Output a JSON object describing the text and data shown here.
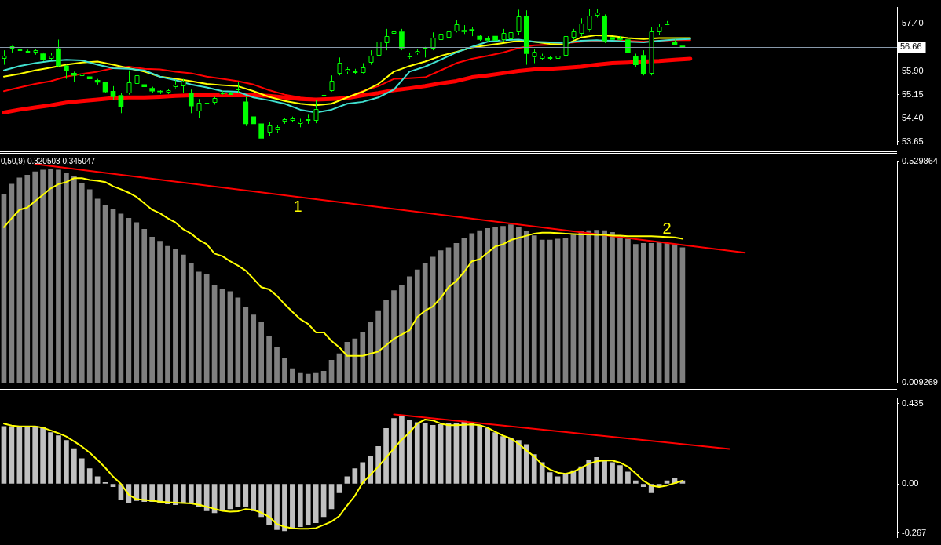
{
  "chart_data": [
    {
      "type": "candlestick",
      "tick_labels": "y",
      "color": "#00ff00",
      "colors": [
        "#000000",
        "#000000",
        "#000000",
        "#000000",
        "#000000",
        "#00ff00",
        "#000000",
        "#00ff00",
        "#00ff00",
        "#00ff00",
        "#000000",
        "#00ff00",
        "#00ff00",
        "#00ff00",
        "#00ff00",
        "#00ff00",
        "#000000",
        "#000000",
        "#00ff00",
        "#00ff00",
        "#00ff00",
        "#000000",
        "#000000",
        "#000000",
        "#00ff00",
        "#000000",
        "#000000",
        "#000000",
        "#000000",
        "#000000",
        "#000000",
        "#00ff00",
        "#00ff00",
        "#00ff00",
        "#000000",
        "#000000",
        "#000000",
        "#000000",
        "#000000",
        "#000000",
        "#000000",
        "#000000",
        "#000000",
        "#000000",
        "#000000",
        "#000000",
        "#000000",
        "#000000",
        "#000000",
        "#000000",
        "#000000",
        "#00ff00",
        "#000000",
        "#000000",
        "#000000",
        "#000000",
        "#000000",
        "#000000",
        "#000000",
        "#00ff00",
        "#00ff00",
        "#00ff00",
        "#00ff00",
        "#00ff00",
        "#000000",
        "#000000",
        "#000000",
        "#00ff00",
        "#000000",
        "#000000",
        "#000000",
        "#000000",
        "#000000",
        "#000000",
        "#000000",
        "#000000",
        "#000000",
        "#00ff00",
        "#00ff00",
        "#00ff00",
        "#00ff00",
        "#00ff00",
        "#00ff00",
        "#000000",
        "#000000",
        "#000000",
        "#00ff00",
        "#00ff00",
        null,
        null,
        null,
        null,
        null,
        null,
        null,
        null,
        null,
        null,
        null,
        null,
        null,
        null,
        null,
        null,
        null,
        null,
        null,
        null,
        null,
        null,
        null,
        null,
        null,
        null,
        null
      ],
      "categories": [
        null,
        null,
        null,
        null,
        null,
        null,
        null,
        null,
        null,
        null,
        null,
        null,
        null,
        null,
        null,
        null,
        null,
        null,
        null,
        null,
        null,
        null,
        null,
        null,
        null,
        null,
        null,
        null,
        null,
        null,
        null,
        null,
        null,
        null,
        null,
        null,
        null,
        null,
        null,
        null,
        null,
        null,
        null,
        null,
        null,
        null,
        null,
        null,
        null,
        null,
        null,
        null,
        null,
        null,
        null,
        null,
        null,
        null,
        null,
        null,
        null,
        null,
        null,
        null,
        null,
        null,
        null,
        null,
        null,
        null,
        null,
        null,
        null,
        null,
        null,
        null,
        null,
        null,
        null,
        null,
        null,
        null,
        null,
        null,
        null,
        null,
        null,
        null,
        null,
        null,
        null,
        null,
        null,
        null,
        null,
        null,
        null,
        null,
        null,
        null,
        null,
        null,
        null,
        null,
        null,
        null,
        null,
        null,
        null,
        null,
        null,
        null,
        null,
        null,
        null
      ],
      "ohlc": [
        [
          56.29,
          56.56,
          56.1,
          56.38
        ],
        [
          56.61,
          56.74,
          56.49,
          56.7
        ],
        [
          56.56,
          56.61,
          56.51,
          56.58
        ],
        [
          56.51,
          56.58,
          56.47,
          56.54
        ],
        [
          56.49,
          56.61,
          56.42,
          56.56
        ],
        [
          56.45,
          56.49,
          56.22,
          56.26
        ],
        [
          56.29,
          56.47,
          56.26,
          56.4
        ],
        [
          56.61,
          56.9,
          56.04,
          56.06
        ],
        [
          56.06,
          56.1,
          55.65,
          55.92
        ],
        [
          55.83,
          55.88,
          55.54,
          55.76
        ],
        [
          55.74,
          55.86,
          55.67,
          55.81
        ],
        [
          55.72,
          55.74,
          55.58,
          55.65
        ],
        [
          55.61,
          55.65,
          55.47,
          55.54
        ],
        [
          55.54,
          55.56,
          55.2,
          55.24
        ],
        [
          55.26,
          55.42,
          54.97,
          55.08
        ],
        [
          55.13,
          55.2,
          54.56,
          54.76
        ],
        [
          55.2,
          55.92,
          55.15,
          55.54
        ],
        [
          55.49,
          55.88,
          55.42,
          55.76
        ],
        [
          55.47,
          55.65,
          55.31,
          55.4
        ],
        [
          55.35,
          55.4,
          55.2,
          55.26
        ],
        [
          55.26,
          55.29,
          55.17,
          55.24
        ],
        [
          55.22,
          55.33,
          55.17,
          55.29
        ],
        [
          55.38,
          55.61,
          55.35,
          55.47
        ],
        [
          55.42,
          55.65,
          55.2,
          55.56
        ],
        [
          55.2,
          55.31,
          54.56,
          54.79
        ],
        [
          54.63,
          55.01,
          54.4,
          54.9
        ],
        [
          54.83,
          55.01,
          54.74,
          54.88
        ],
        [
          54.9,
          55.08,
          54.83,
          55.04
        ],
        [
          55.17,
          55.26,
          55.15,
          55.22
        ],
        [
          55.17,
          55.24,
          55.15,
          55.2
        ],
        [
          55.31,
          55.56,
          55.2,
          55.33
        ],
        [
          54.92,
          55.08,
          54.15,
          54.22
        ],
        [
          54.45,
          54.56,
          54.06,
          54.22
        ],
        [
          54.22,
          54.29,
          53.65,
          53.76
        ],
        [
          53.95,
          54.29,
          53.83,
          54.17
        ],
        [
          54.01,
          54.17,
          53.92,
          54.11
        ],
        [
          54.29,
          54.4,
          54.22,
          54.36
        ],
        [
          54.33,
          54.45,
          54.29,
          54.4
        ],
        [
          54.22,
          54.38,
          54.11,
          54.29
        ],
        [
          54.33,
          54.51,
          54.22,
          54.38
        ],
        [
          54.33,
          54.97,
          54.24,
          54.7
        ],
        [
          55.08,
          55.31,
          55.04,
          55.15
        ],
        [
          55.26,
          55.76,
          55.24,
          55.58
        ],
        [
          55.81,
          56.33,
          55.76,
          56.17
        ],
        [
          55.88,
          56.04,
          55.81,
          55.97
        ],
        [
          55.86,
          55.97,
          55.81,
          55.9
        ],
        [
          55.83,
          56.15,
          55.81,
          56.01
        ],
        [
          56.17,
          56.56,
          56.1,
          56.4
        ],
        [
          56.4,
          56.97,
          56.38,
          56.83
        ],
        [
          56.79,
          57.24,
          56.56,
          57.01
        ],
        [
          57.08,
          57.42,
          57.06,
          57.17
        ],
        [
          57.15,
          57.24,
          56.56,
          56.63
        ],
        [
          56.33,
          56.49,
          56.29,
          56.4
        ],
        [
          56.47,
          56.61,
          56.42,
          56.54
        ],
        [
          56.58,
          56.67,
          56.33,
          56.63
        ],
        [
          56.61,
          57.13,
          56.56,
          56.97
        ],
        [
          56.88,
          57.17,
          56.86,
          57.08
        ],
        [
          56.97,
          57.31,
          56.92,
          57.15
        ],
        [
          57.17,
          57.51,
          57.13,
          57.38
        ],
        [
          57.2,
          57.36,
          57.08,
          57.15
        ],
        [
          57.22,
          57.29,
          57.01,
          57.17
        ],
        [
          57.01,
          57.06,
          56.86,
          56.9
        ],
        [
          56.95,
          57.01,
          56.83,
          56.88
        ],
        [
          57.01,
          57.01,
          56.79,
          56.88
        ],
        [
          56.88,
          57.24,
          56.83,
          57.1
        ],
        [
          56.92,
          57.36,
          56.86,
          57.13
        ],
        [
          57.13,
          57.85,
          57.06,
          57.63
        ],
        [
          57.63,
          57.83,
          56.1,
          56.45
        ],
        [
          56.33,
          56.61,
          56.15,
          56.51
        ],
        [
          56.29,
          56.45,
          56.24,
          56.38
        ],
        [
          56.31,
          56.38,
          56.26,
          56.33
        ],
        [
          56.29,
          56.56,
          56.26,
          56.4
        ],
        [
          56.4,
          57.17,
          56.33,
          57.01
        ],
        [
          56.97,
          57.24,
          56.9,
          57.15
        ],
        [
          57.08,
          57.58,
          57.01,
          57.42
        ],
        [
          57.2,
          57.88,
          57.15,
          57.65
        ],
        [
          57.65,
          57.88,
          57.6,
          57.76
        ],
        [
          57.65,
          57.7,
          56.79,
          56.86
        ],
        [
          56.97,
          57.06,
          56.83,
          56.9
        ],
        [
          56.95,
          57.01,
          56.86,
          56.9
        ],
        [
          56.9,
          57.01,
          56.38,
          56.49
        ],
        [
          56.38,
          56.45,
          56.04,
          56.1
        ],
        [
          56.4,
          56.56,
          55.76,
          55.81
        ],
        [
          55.81,
          57.29,
          55.76,
          57.17
        ],
        [
          57.13,
          57.4,
          57.06,
          57.31
        ],
        [
          57.4,
          57.49,
          57.36,
          57.42
        ],
        [
          56.83,
          56.9,
          56.72,
          56.74
        ],
        [
          56.7,
          56.74,
          56.54,
          56.66
        ],
        null,
        null,
        null,
        null,
        null,
        null,
        null,
        null,
        null,
        null,
        null,
        null,
        null,
        null,
        null,
        null,
        null,
        null,
        null,
        null,
        null,
        null,
        null,
        null,
        null,
        null,
        null
      ],
      "series": [
        {
          "type": "line",
          "color": "#40e0d0",
          "values": [
            55.92,
            null,
            56.06,
            null,
            56.15,
            null,
            56.22,
            null,
            56.26,
            null,
            56.24,
            null,
            56.1,
            null,
            55.99,
            null,
            55.97,
            null,
            55.92,
            null,
            55.72,
            null,
            55.61,
            null,
            55.47,
            null,
            55.38,
            null,
            55.26,
            null,
            55.24,
            null,
            55.06,
            null,
            54.97,
            null,
            54.86,
            null,
            54.67,
            null,
            54.58,
            null,
            54.67,
            null,
            54.86,
            null,
            54.92,
            null,
            55.06,
            null,
            55.31,
            null,
            55.88,
            null,
            56.04,
            null,
            56.26,
            null,
            56.49,
            null,
            56.67,
            null,
            56.83,
            null,
            56.88,
            null,
            56.9,
            null,
            56.83,
            null,
            56.81,
            null,
            56.79,
            null,
            56.86,
            null,
            56.88,
            null,
            56.86,
            null,
            56.83,
            null,
            56.81,
            null,
            56.86,
            null,
            56.9,
            null,
            56.92,
            null,
            null,
            null,
            null,
            null,
            null,
            null,
            null,
            null,
            null,
            null,
            null,
            null,
            null,
            null,
            null,
            null,
            null,
            null,
            null,
            null,
            null,
            null,
            null,
            null,
            null
          ]
        },
        {
          "type": "line",
          "color": "#ffff00",
          "values": [
            55.72,
            null,
            55.81,
            null,
            55.92,
            null,
            56.01,
            null,
            56.1,
            null,
            56.17,
            null,
            56.2,
            null,
            56.1,
            null,
            55.99,
            null,
            55.88,
            null,
            55.72,
            null,
            55.65,
            null,
            55.58,
            null,
            55.49,
            null,
            55.45,
            null,
            55.42,
            null,
            55.26,
            null,
            55.08,
            null,
            54.95,
            null,
            54.86,
            null,
            54.81,
            null,
            54.86,
            null,
            55.06,
            null,
            55.24,
            null,
            55.49,
            null,
            55.88,
            null,
            56.06,
            null,
            56.2,
            null,
            56.38,
            null,
            56.51,
            null,
            56.65,
            null,
            56.72,
            null,
            56.79,
            null,
            56.86,
            null,
            56.83,
            null,
            56.76,
            null,
            56.74,
            null,
            56.97,
            null,
            57.04,
            null,
            57.01,
            null,
            56.95,
            null,
            56.92,
            null,
            56.95,
            null,
            56.95,
            null,
            56.95,
            null,
            null,
            null,
            null,
            null,
            null,
            null,
            null,
            null,
            null,
            null,
            null,
            null,
            null,
            null,
            null,
            null,
            null,
            null,
            null,
            null,
            null,
            null,
            null,
            null,
            null
          ]
        },
        {
          "type": "line",
          "color": "#ff0000",
          "values": [
            55.26,
            null,
            55.38,
            null,
            55.49,
            null,
            55.58,
            null,
            55.72,
            null,
            55.81,
            null,
            55.88,
            null,
            55.99,
            null,
            56.04,
            null,
            55.97,
            null,
            55.95,
            null,
            55.88,
            null,
            55.83,
            null,
            55.72,
            null,
            55.65,
            null,
            55.58,
            null,
            55.47,
            null,
            55.29,
            null,
            55.15,
            null,
            55.06,
            null,
            55.01,
            null,
            55.01,
            null,
            55.06,
            null,
            55.26,
            null,
            55.42,
            null,
            55.65,
            null,
            55.67,
            null,
            55.7,
            null,
            55.92,
            null,
            56.15,
            null,
            56.29,
            null,
            56.38,
            null,
            56.49,
            null,
            56.63,
            null,
            56.72,
            null,
            56.74,
            null,
            null,
            null,
            56.83,
            null,
            56.86,
            null,
            56.86,
            null,
            56.86,
            null,
            56.83,
            null,
            56.86,
            null,
            56.88,
            null,
            56.88,
            null,
            null,
            null,
            null,
            null,
            null,
            null,
            null,
            null,
            null,
            null,
            null,
            null,
            null,
            null,
            null,
            null,
            null,
            null,
            null,
            null,
            null,
            null,
            null,
            null,
            null
          ]
        },
        {
          "type": "line",
          "color": "#ff0000",
          "values": [
            54.58,
            null,
            54.67,
            null,
            54.74,
            null,
            54.81,
            null,
            54.9,
            null,
            54.95,
            null,
            54.99,
            null,
            55.04,
            null,
            55.06,
            null,
            55.06,
            null,
            55.08,
            null,
            55.11,
            null,
            55.13,
            null,
            55.13,
            null,
            55.13,
            null,
            55.13,
            null,
            55.13,
            null,
            55.11,
            null,
            55.06,
            null,
            55.01,
            null,
            54.99,
            null,
            55.01,
            null,
            55.04,
            null,
            55.13,
            null,
            55.2,
            null,
            55.29,
            null,
            55.35,
            null,
            55.42,
            null,
            55.51,
            null,
            55.58,
            null,
            55.7,
            null,
            55.76,
            null,
            55.83,
            null,
            55.9,
            null,
            55.95,
            null,
            55.97,
            null,
            56.0,
            null,
            56.04,
            null,
            56.1,
            null,
            56.15,
            null,
            56.17,
            null,
            56.2,
            null,
            56.22,
            null,
            56.26,
            null,
            56.29,
            null,
            null,
            null,
            null,
            null,
            null,
            null,
            null,
            null,
            null,
            null,
            null,
            null,
            null,
            null,
            null,
            null,
            null,
            null,
            null,
            null,
            null,
            null,
            null,
            null,
            null
          ]
        }
      ],
      "ylim": [
        53.56,
        57.92
      ],
      "yticks": [
        {
          "value": 57.4,
          "label": "57.40"
        },
        {
          "value": 55.9,
          "label": "55.90"
        },
        55.15,
        {
          "value": 54.4,
          "label": "54.40"
        },
        53.65
      ],
      "ref_lines": [
        {
          "axis": "y",
          "value": 56.66,
          "label": "56.66",
          "color": "#8899aa"
        }
      ]
    },
    {
      "type": "bar",
      "tick_labels": "y",
      "title": "0,50,9) 0.320503 0.345047",
      "categories": [
        null,
        null,
        null,
        null,
        null,
        null,
        null,
        null,
        null,
        null,
        null,
        null,
        null,
        null,
        null,
        null,
        null,
        null,
        null,
        null,
        null,
        null,
        null,
        null,
        null,
        null,
        null,
        null,
        null,
        null,
        null,
        null,
        null,
        null,
        null,
        null,
        null,
        null,
        null,
        null,
        null,
        null,
        null,
        null,
        null,
        null,
        null,
        null,
        null,
        null,
        null,
        null,
        null,
        null,
        null,
        null,
        null,
        null,
        null,
        null,
        null,
        null,
        null,
        null,
        null,
        null,
        null,
        null,
        null,
        null,
        null,
        null,
        null,
        null,
        null,
        null,
        null,
        null,
        null,
        null,
        null,
        null,
        null,
        null,
        null,
        null,
        null,
        null,
        null,
        null,
        null,
        null,
        null,
        null,
        null,
        null,
        null,
        null,
        null,
        null,
        null,
        null,
        null,
        null,
        null,
        null,
        null,
        null,
        null,
        null,
        null,
        null,
        null,
        null,
        null
      ],
      "series": [
        {
          "type": "bar",
          "color": "#808080",
          "values": [
            0.451,
            0.476,
            0.491,
            0.497,
            0.505,
            0.509,
            0.51,
            0.509,
            0.502,
            0.495,
            0.478,
            0.463,
            0.441,
            0.426,
            0.416,
            0.406,
            0.396,
            0.386,
            0.37,
            0.352,
            0.342,
            0.33,
            0.323,
            0.31,
            0.29,
            0.27,
            0.264,
            0.239,
            0.229,
            0.224,
            0.209,
            0.186,
            0.169,
            0.153,
            0.118,
            0.093,
            0.068,
            0.043,
            0.032,
            0.03,
            0.032,
            0.037,
            0.063,
            0.078,
            0.105,
            0.113,
            0.128,
            0.153,
            0.179,
            0.204,
            0.226,
            0.239,
            0.259,
            0.275,
            0.29,
            0.305,
            0.32,
            0.327,
            0.337,
            0.35,
            0.36,
            0.367,
            0.372,
            0.375,
            0.377,
            0.381,
            0.375,
            0.365,
            0.355,
            0.345,
            0.345,
            0.347,
            0.35,
            0.357,
            0.365,
            0.367,
            0.368,
            0.367,
            0.363,
            0.355,
            0.347,
            0.335,
            0.337,
            0.337,
            0.34,
            0.337,
            0.335,
            0.327,
            null,
            null,
            null,
            null,
            null,
            null,
            null,
            null,
            null,
            null,
            null,
            null,
            null,
            null,
            null,
            null,
            null,
            null,
            null,
            null,
            null,
            null,
            null,
            null,
            null,
            null,
            null
          ]
        },
        {
          "type": "line",
          "color": "#ffff00",
          "values": [
            0.375,
            0.396,
            0.416,
            0.421,
            0.436,
            0.451,
            0.466,
            0.476,
            0.481,
            0.49,
            0.49,
            0.486,
            0.484,
            0.481,
            0.471,
            0.464,
            0.456,
            0.446,
            0.431,
            0.416,
            0.408,
            0.396,
            0.386,
            0.37,
            0.36,
            0.345,
            0.335,
            0.313,
            0.307,
            0.295,
            0.285,
            0.273,
            0.254,
            0.234,
            0.229,
            0.214,
            0.194,
            0.176,
            0.159,
            0.148,
            0.128,
            0.128,
            0.108,
            0.093,
            0.073,
            0.073,
            0.073,
            0.078,
            0.083,
            0.098,
            0.113,
            0.123,
            0.133,
            0.164,
            0.179,
            0.189,
            0.209,
            0.234,
            0.249,
            0.27,
            0.295,
            0.3,
            0.315,
            0.33,
            0.335,
            0.345,
            0.35,
            0.355,
            0.36,
            0.362,
            0.362,
            0.361,
            0.36,
            0.359,
            0.358,
            0.358,
            0.357,
            0.357,
            0.355,
            0.355,
            0.354,
            0.354,
            0.354,
            0.354,
            0.353,
            0.352,
            0.351,
            0.348,
            null,
            null,
            null,
            null,
            null,
            null,
            null,
            null,
            null,
            null,
            null,
            null,
            null,
            null,
            null,
            null,
            null,
            null,
            null,
            null,
            null,
            null,
            null,
            null,
            null,
            null,
            null
          ]
        },
        {
          "type": "line",
          "color": "#ff0000",
          "values": [
            null,
            null,
            null,
            null,
            0.523,
            null,
            null,
            null,
            null,
            null,
            null,
            null,
            null,
            null,
            null,
            null,
            null,
            null,
            null,
            null,
            null,
            null,
            null,
            null,
            null,
            null,
            null,
            null,
            null,
            null,
            null,
            null,
            null,
            null,
            null,
            null,
            null,
            null,
            null,
            null,
            null,
            null,
            null,
            null,
            null,
            null,
            null,
            null,
            null,
            null,
            null,
            null,
            null,
            null,
            null,
            null,
            null,
            null,
            null,
            null,
            null,
            null,
            null,
            null,
            null,
            null,
            null,
            null,
            null,
            null,
            null,
            null,
            null,
            null,
            null,
            null,
            null,
            null,
            null,
            null,
            null,
            null,
            null,
            null,
            null,
            null,
            null,
            null,
            null,
            null,
            null,
            null,
            null,
            null,
            null,
            0.315,
            null,
            null,
            null,
            null,
            null,
            null,
            null,
            null,
            null,
            null,
            null,
            null,
            null,
            null,
            null,
            null,
            null,
            null,
            null
          ]
        }
      ],
      "ylim": [
        0.009269,
        0.529864
      ],
      "yticks": [
        0.529864,
        0.009269
      ],
      "annotations": [
        "1",
        "2"
      ]
    },
    {
      "type": "bar",
      "tick_labels": "y",
      "categories": [
        null,
        null,
        null,
        null,
        null,
        null,
        null,
        null,
        null,
        null,
        null,
        null,
        null,
        null,
        null,
        null,
        null,
        null,
        null,
        null,
        null,
        null,
        null,
        null,
        null,
        null,
        null,
        null,
        null,
        null,
        null,
        null,
        null,
        null,
        null,
        null,
        null,
        null,
        null,
        null,
        null,
        null,
        null,
        null,
        null,
        null,
        null,
        null,
        null,
        null,
        null,
        null,
        null,
        null,
        null,
        null,
        null,
        null,
        null,
        null,
        null,
        null,
        null,
        null,
        null,
        null,
        null,
        null,
        null,
        null,
        null,
        null,
        null,
        null,
        null,
        null,
        null,
        null,
        null,
        null,
        null,
        null,
        null,
        null,
        null,
        null,
        null,
        null,
        null,
        null,
        null,
        null,
        null,
        null,
        null,
        null,
        null,
        null,
        null,
        null,
        null,
        null,
        null,
        null,
        null,
        null,
        null,
        null,
        null,
        null,
        null,
        null,
        null,
        null,
        null
      ],
      "series": [
        {
          "type": "bar",
          "color": "#c0c0c0",
          "values": [
            0.311,
            0.311,
            0.311,
            0.311,
            0.311,
            0.304,
            0.278,
            0.261,
            0.235,
            0.191,
            0.137,
            0.083,
            0.039,
            0.007,
            -0.015,
            -0.087,
            -0.102,
            -0.091,
            -0.096,
            -0.096,
            -0.102,
            -0.109,
            -0.113,
            -0.102,
            -0.102,
            -0.124,
            -0.146,
            -0.156,
            -0.146,
            -0.135,
            -0.124,
            -0.124,
            -0.146,
            -0.178,
            -0.222,
            -0.248,
            -0.254,
            -0.243,
            -0.232,
            -0.222,
            -0.211,
            -0.178,
            -0.135,
            -0.048,
            0.039,
            0.083,
            0.115,
            0.152,
            0.202,
            0.3,
            0.354,
            0.365,
            0.343,
            0.332,
            0.326,
            0.317,
            0.321,
            0.326,
            0.326,
            0.339,
            0.326,
            0.317,
            0.3,
            0.278,
            0.256,
            0.245,
            0.235,
            0.213,
            0.159,
            0.115,
            0.061,
            0.039,
            0.05,
            0.072,
            0.093,
            0.13,
            0.143,
            0.13,
            0.115,
            0.1,
            0.065,
            0.017,
            -0.015,
            -0.048,
            -0.015,
            0.017,
            0.028,
            0.017,
            null,
            null,
            null,
            null,
            null,
            null,
            null,
            null,
            null,
            null,
            null,
            null,
            null,
            null,
            null,
            null,
            null,
            null,
            null,
            null,
            null,
            null,
            null,
            null,
            null,
            null,
            null
          ]
        },
        {
          "type": "line",
          "color": "#ffff00",
          "values": [
            0.326,
            0.315,
            0.311,
            0.311,
            0.311,
            0.304,
            0.289,
            0.274,
            0.256,
            0.23,
            0.202,
            0.169,
            0.13,
            0.087,
            0.039,
            0.0,
            -0.059,
            -0.083,
            -0.087,
            -0.091,
            -0.096,
            -0.1,
            -0.102,
            -0.104,
            -0.106,
            -0.113,
            -0.124,
            -0.135,
            -0.146,
            -0.15,
            -0.148,
            -0.137,
            -0.141,
            -0.156,
            -0.178,
            -0.217,
            -0.232,
            -0.241,
            -0.243,
            -0.243,
            -0.239,
            -0.222,
            -0.204,
            -0.174,
            -0.117,
            -0.065,
            0.007,
            0.05,
            0.093,
            0.143,
            0.191,
            0.239,
            0.278,
            0.326,
            0.348,
            0.343,
            0.326,
            0.317,
            0.317,
            0.319,
            0.321,
            0.317,
            0.304,
            0.282,
            0.261,
            0.245,
            0.217,
            0.18,
            0.148,
            0.104,
            0.078,
            0.061,
            0.054,
            0.065,
            0.087,
            0.109,
            0.122,
            0.126,
            0.126,
            0.115,
            0.093,
            0.056,
            0.017,
            -0.009,
            -0.017,
            -0.009,
            0.004,
            0.017,
            null,
            null,
            null,
            null,
            null,
            null,
            null,
            null,
            null,
            null,
            null,
            null,
            null,
            null,
            null,
            null,
            null,
            null,
            null,
            null,
            null,
            null,
            null,
            null,
            null,
            null,
            null
          ]
        },
        {
          "type": "line",
          "color": "#ff0000",
          "values": [
            null,
            null,
            null,
            null,
            null,
            null,
            null,
            null,
            null,
            null,
            null,
            null,
            null,
            null,
            null,
            null,
            null,
            null,
            null,
            null,
            null,
            null,
            null,
            null,
            null,
            null,
            null,
            null,
            null,
            null,
            null,
            null,
            null,
            null,
            null,
            null,
            null,
            null,
            null,
            null,
            null,
            null,
            null,
            null,
            null,
            null,
            null,
            null,
            null,
            null,
            0.376,
            null,
            null,
            null,
            null,
            null,
            null,
            null,
            null,
            null,
            null,
            null,
            null,
            null,
            null,
            null,
            null,
            null,
            null,
            null,
            null,
            null,
            null,
            null,
            null,
            null,
            null,
            null,
            null,
            null,
            null,
            null,
            null,
            null,
            null,
            null,
            null,
            null,
            null,
            null,
            null,
            null,
            null,
            0.189,
            null,
            null,
            null,
            null,
            null,
            null,
            null,
            null,
            null,
            null,
            null,
            null,
            null,
            null,
            null,
            null,
            null,
            null,
            null,
            null,
            null
          ]
        }
      ],
      "ylim": [
        -0.29,
        0.46
      ],
      "yticks": [
        0.435,
        {
          "value": 0,
          "label": "0.00"
        },
        -0.267
      ]
    }
  ]
}
